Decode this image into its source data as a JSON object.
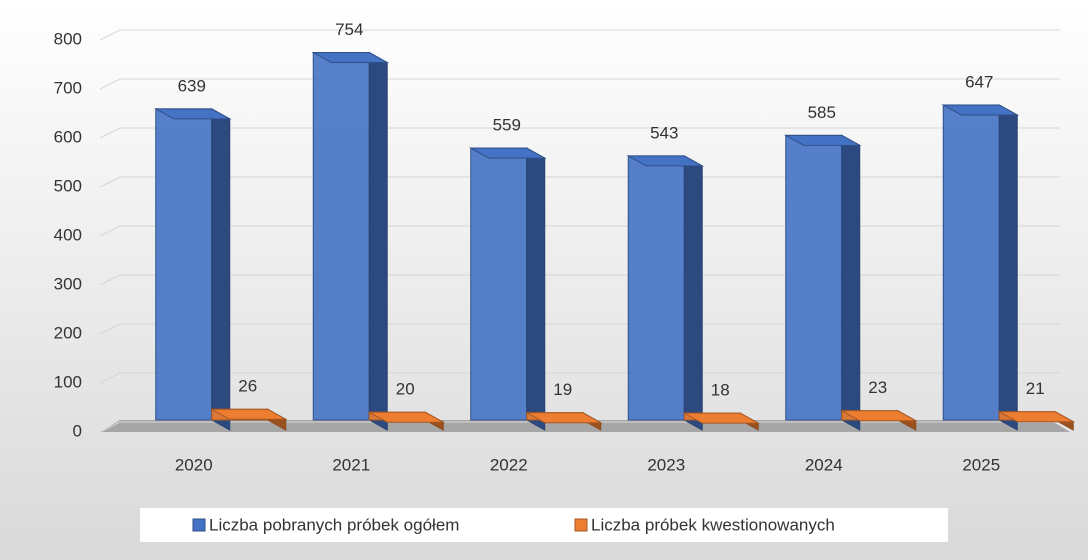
{
  "chart_data": {
    "type": "bar3d",
    "categories": [
      "2020",
      "2021",
      "2022",
      "2023",
      "2024",
      "2025"
    ],
    "series": [
      {
        "name": "Liczba pobranych próbek ogółem",
        "color": "#4472c4",
        "values": [
          639,
          754,
          559,
          543,
          585,
          647
        ]
      },
      {
        "name": "Liczba próbek kwestionowanych",
        "color": "#ed7d31",
        "values": [
          26,
          20,
          19,
          18,
          23,
          21
        ]
      }
    ],
    "ylim": [
      0,
      800
    ],
    "yticks": [
      0,
      100,
      200,
      300,
      400,
      500,
      600,
      700,
      800
    ],
    "grid": true,
    "legend": "bottom"
  }
}
